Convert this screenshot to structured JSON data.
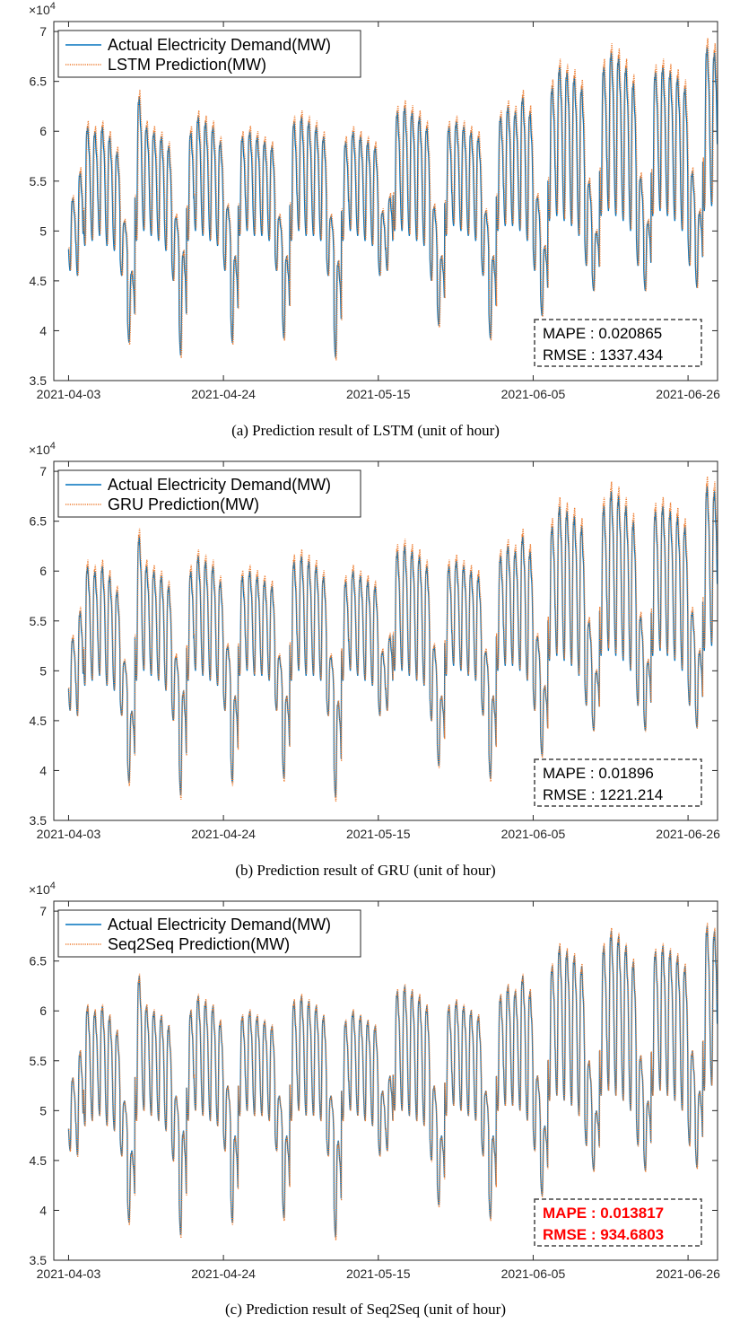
{
  "panels": [
    {
      "caption": "(a) Prediction result of LSTM (unit of hour)",
      "legend": [
        "Actual Electricity Demand(MW)",
        "LSTM Prediction(MW)"
      ],
      "metrics": [
        "MAPE : 0.020865",
        "RMSE : 1337.434"
      ],
      "highlight_metrics": false
    },
    {
      "caption": "(b) Prediction result of GRU (unit of hour)",
      "legend": [
        "Actual Electricity Demand(MW)",
        "GRU Prediction(MW)"
      ],
      "metrics": [
        "MAPE : 0.01896",
        "RMSE : 1221.214"
      ],
      "highlight_metrics": false
    },
    {
      "caption": "(c) Prediction result of Seq2Seq (unit of hour)",
      "legend": [
        "Actual Electricity Demand(MW)",
        "Seq2Seq Prediction(MW)"
      ],
      "metrics": [
        "MAPE : 0.013817",
        "RMSE : 934.6803"
      ],
      "highlight_metrics": true
    }
  ],
  "chart_data": [
    {
      "type": "line",
      "title": "",
      "xlabel": "",
      "ylabel": "",
      "y_exponent_label": "×10^4",
      "xlim": [
        "2021-04-01",
        "2021-06-30"
      ],
      "ylim": [
        35000,
        71000
      ],
      "x_ticks": [
        "2021-04-03",
        "2021-04-24",
        "2021-05-15",
        "2021-06-05",
        "2021-06-26"
      ],
      "y_ticks": [
        "3.5",
        "4",
        "4.5",
        "5",
        "5.5",
        "6",
        "6.5",
        "7"
      ],
      "legend_position": "top-left",
      "grid": false,
      "x_dates": [
        "2021-04-03",
        "2021-04-04",
        "2021-04-05",
        "2021-04-06",
        "2021-04-07",
        "2021-04-08",
        "2021-04-09",
        "2021-04-10",
        "2021-04-11",
        "2021-04-12",
        "2021-04-13",
        "2021-04-14",
        "2021-04-15",
        "2021-04-16",
        "2021-04-17",
        "2021-04-18",
        "2021-04-19",
        "2021-04-20",
        "2021-04-21",
        "2021-04-22",
        "2021-04-23",
        "2021-04-24",
        "2021-04-25",
        "2021-04-26",
        "2021-04-27",
        "2021-04-28",
        "2021-04-29",
        "2021-04-30",
        "2021-05-01",
        "2021-05-02",
        "2021-05-03",
        "2021-05-04",
        "2021-05-05",
        "2021-05-06",
        "2021-05-07",
        "2021-05-08",
        "2021-05-09",
        "2021-05-10",
        "2021-05-11",
        "2021-05-12",
        "2021-05-13",
        "2021-05-14",
        "2021-05-15",
        "2021-05-16",
        "2021-05-17",
        "2021-05-18",
        "2021-05-19",
        "2021-05-20",
        "2021-05-21",
        "2021-05-22",
        "2021-05-23",
        "2021-05-24",
        "2021-05-25",
        "2021-05-26",
        "2021-05-27",
        "2021-05-28",
        "2021-05-29",
        "2021-05-30",
        "2021-05-31",
        "2021-06-01",
        "2021-06-02",
        "2021-06-03",
        "2021-06-04",
        "2021-06-05",
        "2021-06-06",
        "2021-06-07",
        "2021-06-08",
        "2021-06-09",
        "2021-06-10",
        "2021-06-11",
        "2021-06-12",
        "2021-06-13",
        "2021-06-14",
        "2021-06-15",
        "2021-06-16",
        "2021-06-17",
        "2021-06-18",
        "2021-06-19",
        "2021-06-20",
        "2021-06-21",
        "2021-06-22",
        "2021-06-23",
        "2021-06-24",
        "2021-06-25",
        "2021-06-26",
        "2021-06-27",
        "2021-06-28",
        "2021-06-29"
      ],
      "daily_min": [
        46000,
        45500,
        48500,
        49000,
        49500,
        48500,
        48000,
        45500,
        38800,
        49000,
        50000,
        49500,
        49000,
        48000,
        45000,
        37500,
        49000,
        50000,
        49500,
        49000,
        48500,
        46000,
        38800,
        49500,
        50000,
        49500,
        49500,
        49000,
        46000,
        39200,
        49000,
        50000,
        49500,
        49500,
        49000,
        45500,
        37300,
        49000,
        50000,
        49500,
        49000,
        48500,
        45500,
        46000,
        50000,
        50000,
        49500,
        49000,
        48500,
        45000,
        40500,
        49500,
        50500,
        50000,
        49500,
        49000,
        45500,
        39200,
        50000,
        50500,
        50500,
        50000,
        49000,
        46000,
        41500,
        51000,
        51500,
        51000,
        50500,
        49500,
        46500,
        44000,
        51500,
        52000,
        51500,
        51000,
        50000,
        46500,
        44000,
        51500,
        52000,
        51500,
        51000,
        50000,
        46500,
        44300,
        52000,
        52500
      ],
      "daily_max": [
        53300,
        56000,
        60500,
        60000,
        60500,
        59500,
        58000,
        51000,
        46000,
        63500,
        60500,
        60000,
        59500,
        58500,
        51500,
        48000,
        60000,
        61500,
        61000,
        60500,
        59000,
        52500,
        47500,
        59500,
        60000,
        59500,
        59000,
        58500,
        51500,
        47500,
        61000,
        61500,
        61000,
        60500,
        59500,
        51500,
        47000,
        59000,
        60000,
        59500,
        59000,
        58500,
        52000,
        53500,
        62000,
        62500,
        62000,
        61500,
        60500,
        52500,
        47500,
        60500,
        61000,
        60500,
        60000,
        59500,
        52000,
        47500,
        61500,
        62500,
        62000,
        63500,
        62000,
        53500,
        48500,
        64500,
        66500,
        66000,
        65500,
        64500,
        55000,
        50000,
        66500,
        68000,
        67500,
        66500,
        65000,
        55500,
        51000,
        66000,
        66500,
        66000,
        65500,
        64500,
        56000,
        52000,
        68500,
        68000
      ],
      "series": [
        {
          "name": "Actual Electricity Demand(MW)",
          "color": "#0072BD",
          "style": "solid"
        },
        {
          "name": "LSTM Prediction(MW)",
          "color": "#ED7D31",
          "style": "dotted"
        }
      ]
    },
    {
      "type": "line",
      "title": "",
      "xlabel": "",
      "ylabel": "",
      "y_exponent_label": "×10^4",
      "xlim": [
        "2021-04-01",
        "2021-06-30"
      ],
      "ylim": [
        35000,
        71000
      ],
      "x_ticks": [
        "2021-04-03",
        "2021-04-24",
        "2021-05-15",
        "2021-06-05",
        "2021-06-26"
      ],
      "y_ticks": [
        "3.5",
        "4",
        "4.5",
        "5",
        "5.5",
        "6",
        "6.5",
        "7"
      ],
      "legend_position": "top-left",
      "grid": false,
      "x_dates": "same as panel (a)",
      "daily_min": "same as panel (a)",
      "daily_max": "same as panel (a)",
      "series": [
        {
          "name": "Actual Electricity Demand(MW)",
          "color": "#0072BD",
          "style": "solid"
        },
        {
          "name": "GRU Prediction(MW)",
          "color": "#ED7D31",
          "style": "dotted"
        }
      ]
    },
    {
      "type": "line",
      "title": "",
      "xlabel": "",
      "ylabel": "",
      "y_exponent_label": "×10^4",
      "xlim": [
        "2021-04-01",
        "2021-06-30"
      ],
      "ylim": [
        35000,
        71000
      ],
      "x_ticks": [
        "2021-04-03",
        "2021-04-24",
        "2021-05-15",
        "2021-06-05",
        "2021-06-26"
      ],
      "y_ticks": [
        "3.5",
        "4",
        "4.5",
        "5",
        "5.5",
        "6",
        "6.5",
        "7"
      ],
      "legend_position": "top-left",
      "grid": false,
      "x_dates": "same as panel (a)",
      "daily_min": "same as panel (a)",
      "daily_max": "same as panel (a)",
      "series": [
        {
          "name": "Actual Electricity Demand(MW)",
          "color": "#0072BD",
          "style": "solid"
        },
        {
          "name": "Seq2Seq Prediction(MW)",
          "color": "#ED7D31",
          "style": "dotted"
        }
      ]
    }
  ]
}
